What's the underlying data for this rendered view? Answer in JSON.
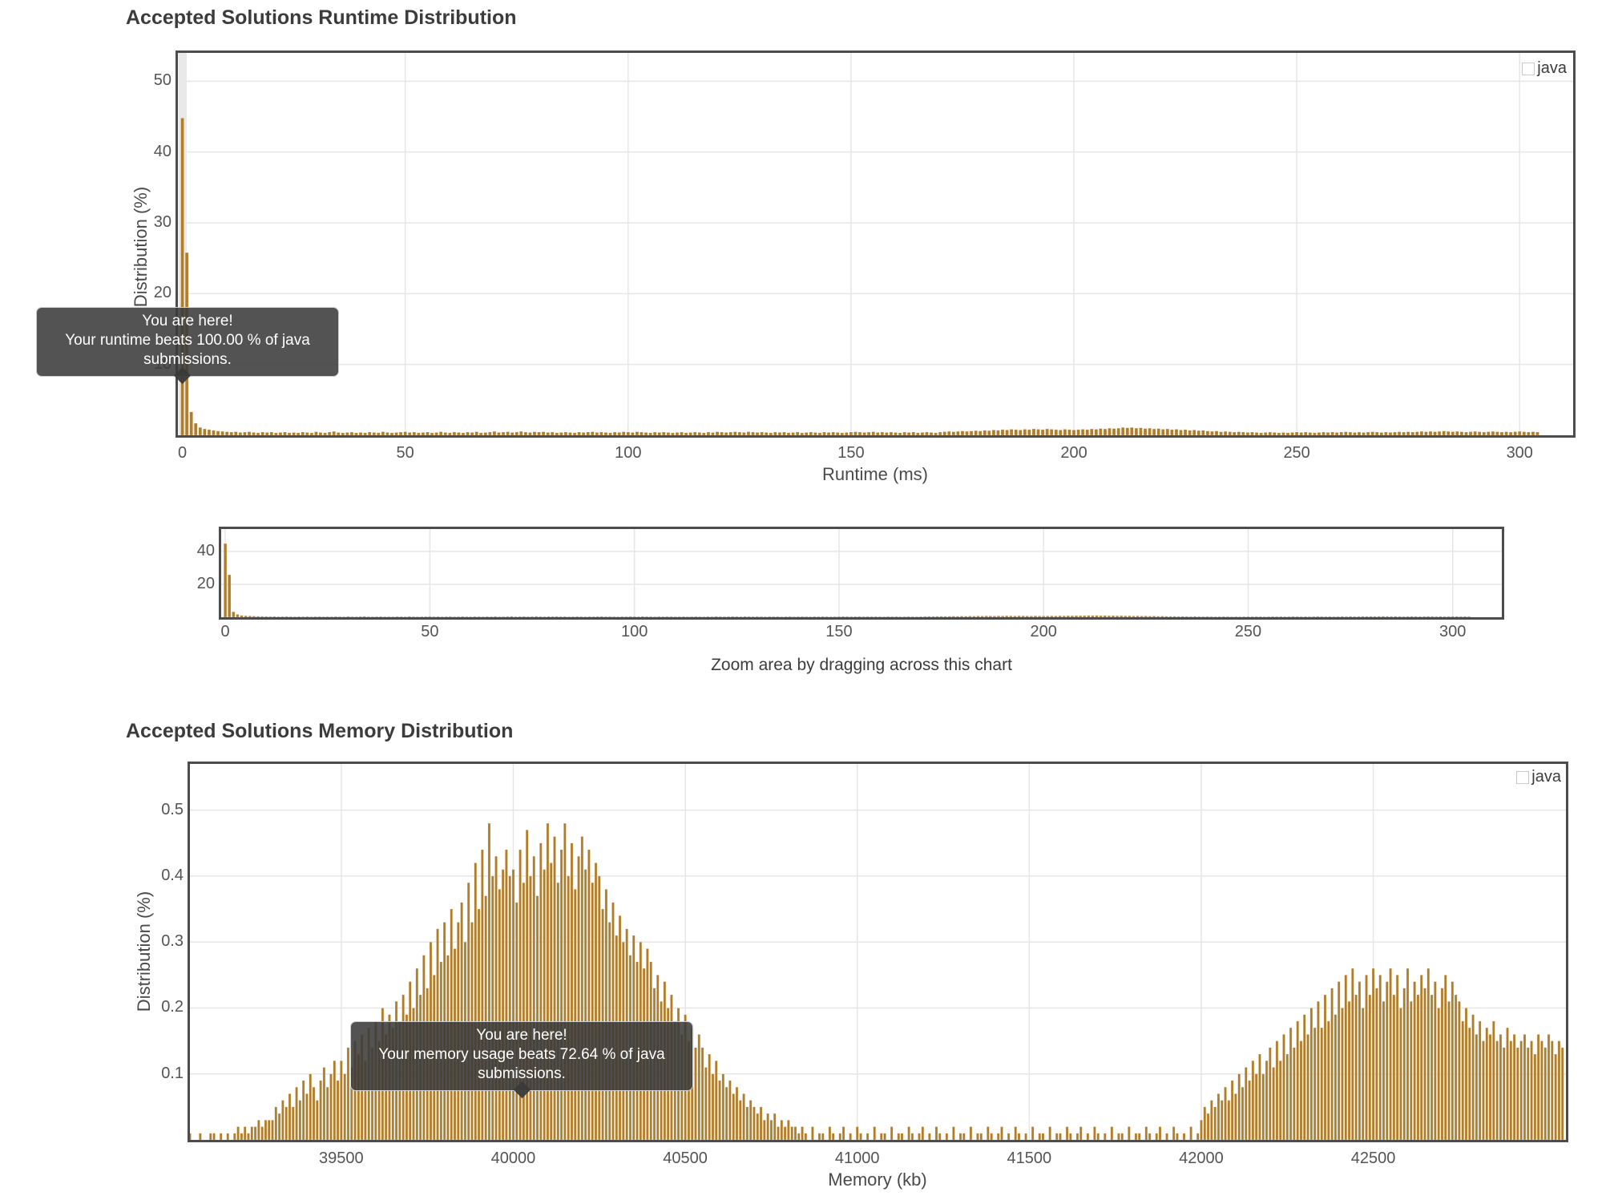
{
  "colors": {
    "bar_fill": "#b07d28",
    "bar_edge": "rgba(255,255,255,0.4)",
    "chart_border": "#4c4c4c",
    "grid": "#e6e6e6",
    "crosshair_band": "#e9e9e9",
    "title_text": "#3c3c3c",
    "tick_text": "#545454",
    "tooltip_bg": "#3a3a3a",
    "tooltip_text": "#ffffff"
  },
  "chart_data": [
    {
      "id": "runtime",
      "type": "bar",
      "title": "Accepted Solutions Runtime Distribution",
      "xlabel": "Runtime (ms)",
      "ylabel": "Distribution (%)",
      "legend": [
        "java"
      ],
      "legend_position": "top-right",
      "grid": true,
      "xlim": [
        -1,
        312
      ],
      "ylim": [
        0,
        54
      ],
      "bin_start": 0,
      "bin_width": 1,
      "xtick_values": [
        0,
        50,
        100,
        150,
        200,
        250,
        300
      ],
      "xtick_labels": [
        "0",
        "50",
        "100",
        "150",
        "200",
        "250",
        "300"
      ],
      "ytick_values": [
        10,
        20,
        30,
        40,
        50
      ],
      "ytick_labels": [
        "10",
        "20",
        "30",
        "40",
        "50"
      ],
      "tooltip": {
        "line1": "You are here!",
        "line2": "Your runtime beats 100.00 % of java submissions."
      },
      "values": [
        44.8,
        25.8,
        3.3,
        1.7,
        1.1,
        0.9,
        0.8,
        0.7,
        0.6,
        0.55,
        0.5,
        0.45,
        0.5,
        0.4,
        0.45,
        0.5,
        0.4,
        0.35,
        0.45,
        0.4,
        0.45,
        0.35,
        0.4,
        0.45,
        0.35,
        0.4,
        0.35,
        0.45,
        0.4,
        0.35,
        0.5,
        0.4,
        0.35,
        0.45,
        0.55,
        0.4,
        0.35,
        0.4,
        0.45,
        0.35,
        0.4,
        0.35,
        0.45,
        0.4,
        0.35,
        0.5,
        0.4,
        0.35,
        0.4,
        0.45,
        0.5,
        0.4,
        0.45,
        0.35,
        0.4,
        0.45,
        0.35,
        0.4,
        0.5,
        0.4,
        0.35,
        0.45,
        0.4,
        0.35,
        0.45,
        0.4,
        0.5,
        0.35,
        0.4,
        0.45,
        0.55,
        0.4,
        0.45,
        0.5,
        0.4,
        0.45,
        0.55,
        0.45,
        0.4,
        0.5,
        0.45,
        0.5,
        0.4,
        0.45,
        0.35,
        0.4,
        0.45,
        0.4,
        0.35,
        0.45,
        0.4,
        0.45,
        0.5,
        0.4,
        0.45,
        0.4,
        0.35,
        0.45,
        0.4,
        0.5,
        0.45,
        0.4,
        0.5,
        0.45,
        0.4,
        0.35,
        0.45,
        0.4,
        0.45,
        0.4,
        0.35,
        0.4,
        0.45,
        0.35,
        0.4,
        0.45,
        0.4,
        0.35,
        0.45,
        0.4,
        0.5,
        0.45,
        0.4,
        0.45,
        0.5,
        0.45,
        0.4,
        0.5,
        0.45,
        0.4,
        0.45,
        0.4,
        0.35,
        0.45,
        0.4,
        0.45,
        0.35,
        0.4,
        0.45,
        0.35,
        0.4,
        0.45,
        0.4,
        0.35,
        0.45,
        0.4,
        0.45,
        0.4,
        0.35,
        0.4,
        0.45,
        0.5,
        0.45,
        0.4,
        0.45,
        0.5,
        0.4,
        0.45,
        0.4,
        0.45,
        0.4,
        0.35,
        0.45,
        0.4,
        0.45,
        0.35,
        0.4,
        0.45,
        0.4,
        0.35,
        0.45,
        0.5,
        0.55,
        0.5,
        0.55,
        0.6,
        0.55,
        0.6,
        0.65,
        0.6,
        0.7,
        0.65,
        0.75,
        0.7,
        0.8,
        0.75,
        0.85,
        0.8,
        0.75,
        0.85,
        0.8,
        0.9,
        0.85,
        0.8,
        0.9,
        0.85,
        0.8,
        0.75,
        0.85,
        0.8,
        0.75,
        0.8,
        0.85,
        0.8,
        0.9,
        0.85,
        0.95,
        0.9,
        1.0,
        0.95,
        1.0,
        1.1,
        1.05,
        1.1,
        1.0,
        1.05,
        0.95,
        1.0,
        0.9,
        0.95,
        0.85,
        0.9,
        0.8,
        0.85,
        0.75,
        0.8,
        0.7,
        0.75,
        0.65,
        0.7,
        0.6,
        0.55,
        0.6,
        0.5,
        0.55,
        0.5,
        0.45,
        0.5,
        0.45,
        0.4,
        0.45,
        0.4,
        0.35,
        0.4,
        0.45,
        0.4,
        0.35,
        0.4,
        0.35,
        0.4,
        0.45,
        0.4,
        0.45,
        0.4,
        0.35,
        0.4,
        0.45,
        0.4,
        0.45,
        0.4,
        0.45,
        0.5,
        0.45,
        0.4,
        0.45,
        0.4,
        0.45,
        0.5,
        0.45,
        0.4,
        0.45,
        0.4,
        0.45,
        0.5,
        0.45,
        0.5,
        0.45,
        0.5,
        0.55,
        0.5,
        0.55,
        0.5,
        0.55,
        0.6,
        0.55,
        0.5,
        0.55,
        0.5,
        0.45,
        0.5,
        0.55,
        0.5,
        0.45,
        0.5,
        0.55,
        0.5,
        0.45,
        0.5,
        0.45,
        0.5,
        0.55,
        0.5,
        0.45,
        0.5,
        0.45
      ]
    },
    {
      "id": "navigator",
      "type": "bar",
      "caption": "Zoom area by dragging across this chart",
      "grid": true,
      "xlim": [
        -1,
        312
      ],
      "ylim": [
        0,
        53.6
      ],
      "bin_start": 0,
      "bin_width": 1,
      "xtick_values": [
        0,
        50,
        100,
        150,
        200,
        250,
        300
      ],
      "xtick_labels": [
        "0",
        "50",
        "100",
        "150",
        "200",
        "250",
        "300"
      ],
      "ytick_values": [
        20,
        40
      ],
      "ytick_labels": [
        "20",
        "40"
      ],
      "values": "same-as-runtime"
    },
    {
      "id": "memory",
      "type": "bar",
      "title": "Accepted Solutions Memory Distribution",
      "xlabel": "Memory (kb)",
      "ylabel": "Distribution (%)",
      "legend": [
        "java"
      ],
      "legend_position": "top-right",
      "grid": true,
      "xlim": [
        39060,
        43060
      ],
      "ylim": [
        0,
        0.57
      ],
      "bin_start": 39060,
      "bin_width": 10,
      "xtick_values": [
        39500,
        40000,
        40500,
        41000,
        41500,
        42000,
        42500
      ],
      "xtick_labels": [
        "39500",
        "40000",
        "40500",
        "41000",
        "41500",
        "42000",
        "42500"
      ],
      "ytick_values": [
        0.1,
        0.2,
        0.3,
        0.4,
        0.5
      ],
      "ytick_labels": [
        "0.1",
        "0.2",
        "0.3",
        "0.4",
        "0.5"
      ],
      "tooltip": {
        "line1": "You are here!",
        "line2": "Your memory usage beats 72.64 % of java submissions."
      },
      "values": [
        0.01,
        0,
        0,
        0.01,
        0,
        0,
        0.01,
        0.01,
        0,
        0.01,
        0,
        0.01,
        0,
        0.01,
        0.02,
        0.01,
        0.02,
        0.01,
        0.02,
        0.02,
        0.03,
        0.02,
        0.03,
        0.03,
        0.03,
        0.05,
        0.04,
        0.06,
        0.05,
        0.07,
        0.05,
        0.08,
        0.06,
        0.09,
        0.07,
        0.1,
        0.08,
        0.06,
        0.09,
        0.11,
        0.08,
        0.1,
        0.12,
        0.09,
        0.12,
        0.1,
        0.14,
        0.11,
        0.15,
        0.13,
        0.16,
        0.12,
        0.17,
        0.14,
        0.18,
        0.15,
        0.2,
        0.16,
        0.19,
        0.17,
        0.21,
        0.18,
        0.22,
        0.19,
        0.24,
        0.2,
        0.26,
        0.22,
        0.28,
        0.23,
        0.3,
        0.25,
        0.32,
        0.27,
        0.33,
        0.28,
        0.35,
        0.29,
        0.33,
        0.36,
        0.3,
        0.39,
        0.33,
        0.42,
        0.35,
        0.44,
        0.37,
        0.48,
        0.4,
        0.43,
        0.38,
        0.41,
        0.44,
        0.4,
        0.41,
        0.36,
        0.44,
        0.39,
        0.47,
        0.4,
        0.43,
        0.37,
        0.45,
        0.41,
        0.48,
        0.42,
        0.46,
        0.39,
        0.44,
        0.48,
        0.4,
        0.45,
        0.38,
        0.43,
        0.46,
        0.41,
        0.44,
        0.39,
        0.42,
        0.4,
        0.35,
        0.38,
        0.33,
        0.36,
        0.31,
        0.34,
        0.3,
        0.32,
        0.28,
        0.31,
        0.27,
        0.3,
        0.26,
        0.29,
        0.27,
        0.23,
        0.25,
        0.21,
        0.24,
        0.2,
        0.22,
        0.18,
        0.2,
        0.16,
        0.19,
        0.15,
        0.17,
        0.14,
        0.16,
        0.14,
        0.11,
        0.13,
        0.1,
        0.12,
        0.09,
        0.1,
        0.08,
        0.09,
        0.07,
        0.08,
        0.06,
        0.07,
        0.05,
        0.06,
        0.05,
        0.04,
        0.05,
        0.03,
        0.04,
        0.03,
        0.04,
        0.02,
        0.03,
        0.02,
        0.03,
        0.02,
        0.02,
        0.01,
        0.02,
        0.01,
        0,
        0.02,
        0,
        0.01,
        0.01,
        0,
        0.02,
        0.01,
        0,
        0.01,
        0.02,
        0,
        0.01,
        0,
        0.02,
        0.01,
        0,
        0.01,
        0,
        0.02,
        0,
        0.01,
        0.01,
        0,
        0.02,
        0,
        0.01,
        0.01,
        0,
        0.02,
        0.01,
        0,
        0.01,
        0.02,
        0,
        0.01,
        0,
        0.02,
        0.01,
        0,
        0.01,
        0,
        0.02,
        0,
        0.01,
        0.01,
        0,
        0.02,
        0,
        0.01,
        0.01,
        0,
        0.02,
        0.01,
        0,
        0.01,
        0.02,
        0,
        0.01,
        0,
        0.02,
        0.01,
        0,
        0.01,
        0,
        0.02,
        0,
        0.01,
        0.01,
        0,
        0.02,
        0,
        0.01,
        0.01,
        0,
        0.02,
        0.01,
        0,
        0.01,
        0.02,
        0,
        0.01,
        0,
        0.02,
        0.01,
        0,
        0.01,
        0,
        0.02,
        0,
        0.01,
        0.01,
        0,
        0.02,
        0,
        0.01,
        0.01,
        0,
        0.02,
        0.01,
        0,
        0.01,
        0.02,
        0,
        0.01,
        0,
        0.02,
        0.01,
        0,
        0.01,
        0,
        0.02,
        0,
        0.01,
        0.03,
        0.05,
        0.04,
        0.06,
        0.05,
        0.07,
        0.06,
        0.08,
        0.06,
        0.09,
        0.07,
        0.1,
        0.08,
        0.11,
        0.09,
        0.12,
        0.1,
        0.13,
        0.1,
        0.12,
        0.14,
        0.11,
        0.15,
        0.12,
        0.16,
        0.13,
        0.17,
        0.14,
        0.18,
        0.15,
        0.19,
        0.16,
        0.2,
        0.17,
        0.21,
        0.17,
        0.22,
        0.18,
        0.23,
        0.19,
        0.24,
        0.2,
        0.25,
        0.21,
        0.26,
        0.22,
        0.24,
        0.2,
        0.25,
        0.22,
        0.26,
        0.23,
        0.25,
        0.21,
        0.24,
        0.26,
        0.22,
        0.25,
        0.2,
        0.23,
        0.26,
        0.21,
        0.24,
        0.22,
        0.25,
        0.23,
        0.26,
        0.22,
        0.24,
        0.2,
        0.23,
        0.25,
        0.21,
        0.24,
        0.22,
        0.21,
        0.18,
        0.2,
        0.17,
        0.19,
        0.16,
        0.18,
        0.15,
        0.17,
        0.16,
        0.18,
        0.15,
        0.16,
        0.14,
        0.17,
        0.15,
        0.16,
        0.14,
        0.15,
        0.16,
        0.14,
        0.15,
        0.13,
        0.16,
        0.15,
        0.14,
        0.16,
        0.15,
        0.13,
        0.15,
        0.14
      ]
    }
  ]
}
